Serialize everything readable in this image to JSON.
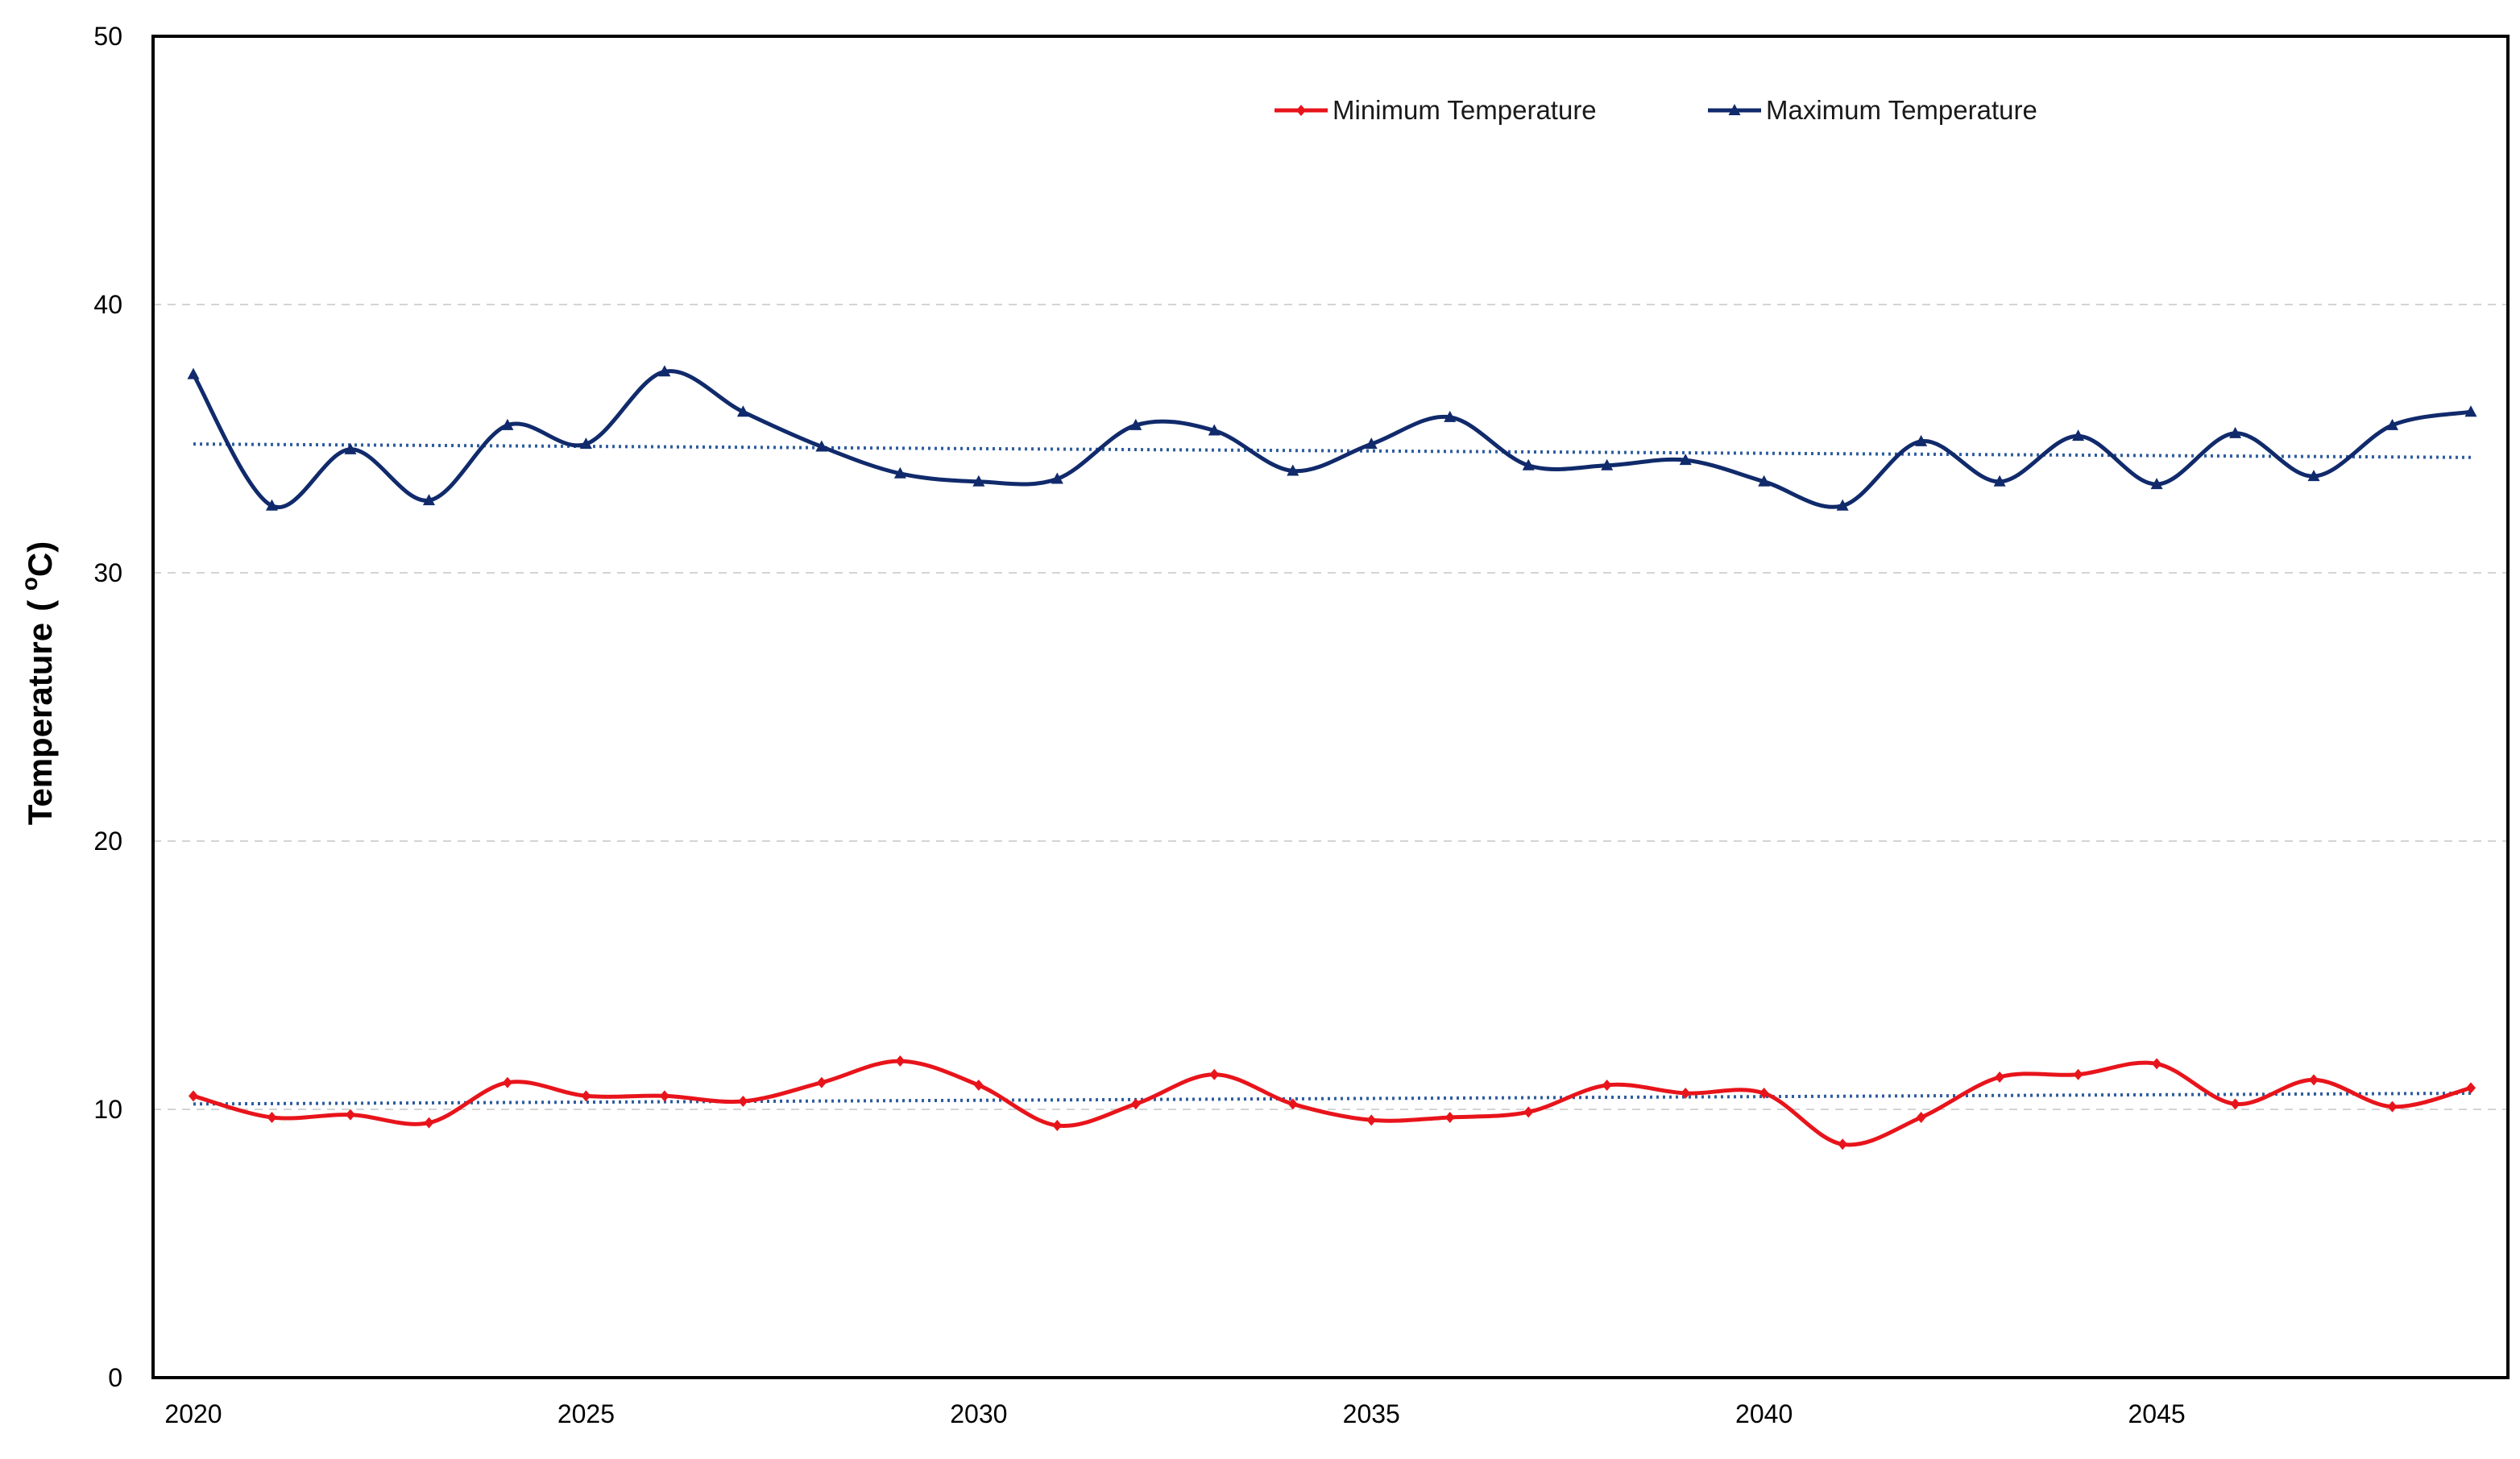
{
  "chart_data": {
    "type": "line",
    "title": "",
    "xlabel": "",
    "ylabel": "Temperature",
    "ylabel_unit": "( oC)",
    "ylabel_unit_parts": {
      "open": "( ",
      "superscript": "o",
      "unit": "C)"
    },
    "xlim": [
      2020,
      2049
    ],
    "ylim": [
      0,
      50
    ],
    "x_ticks": [
      2020,
      2025,
      2030,
      2035,
      2040,
      2045
    ],
    "x_tick_labels": [
      "2020",
      "2025",
      "2030",
      "2035",
      "2040",
      "2045"
    ],
    "y_ticks": [
      0,
      10,
      20,
      30,
      40,
      50
    ],
    "y_tick_labels": [
      "0",
      "10",
      "20",
      "30",
      "40",
      "50"
    ],
    "grid": "horizontal dashed",
    "legend_position": "top-right",
    "x": [
      2020,
      2021,
      2022,
      2023,
      2024,
      2025,
      2026,
      2027,
      2028,
      2029,
      2030,
      2031,
      2032,
      2033,
      2034,
      2035,
      2036,
      2037,
      2038,
      2039,
      2040,
      2041,
      2042,
      2043,
      2044,
      2045,
      2046,
      2047,
      2048,
      2049
    ],
    "series": [
      {
        "name": "Minimum Temperature",
        "color": "#e8141b",
        "marker": "diamond",
        "values": [
          10.5,
          9.7,
          9.8,
          9.5,
          11.0,
          10.5,
          10.5,
          10.3,
          11.0,
          11.8,
          10.9,
          9.4,
          10.2,
          11.3,
          10.2,
          9.6,
          9.7,
          9.9,
          10.9,
          10.6,
          10.6,
          8.7,
          9.7,
          11.2,
          11.3,
          11.7,
          10.2,
          11.1,
          10.1,
          10.8
        ],
        "trendline": {
          "style": "dotted",
          "color": "#2e5c9e",
          "start": 10.2,
          "end": 10.6
        }
      },
      {
        "name": "Maximum Temperature",
        "color": "#102a6b",
        "marker": "triangle",
        "values": [
          37.4,
          32.5,
          34.6,
          32.7,
          35.5,
          34.8,
          37.5,
          36.0,
          34.7,
          33.7,
          33.4,
          33.5,
          35.5,
          35.3,
          33.8,
          34.8,
          35.8,
          34.0,
          34.0,
          34.2,
          33.4,
          32.5,
          34.9,
          33.4,
          35.1,
          33.3,
          35.2,
          33.6,
          35.5,
          36.0
        ],
        "trendline": {
          "style": "dotted",
          "color": "#2e5c9e",
          "start": 34.8,
          "end": 34.3
        }
      }
    ]
  }
}
